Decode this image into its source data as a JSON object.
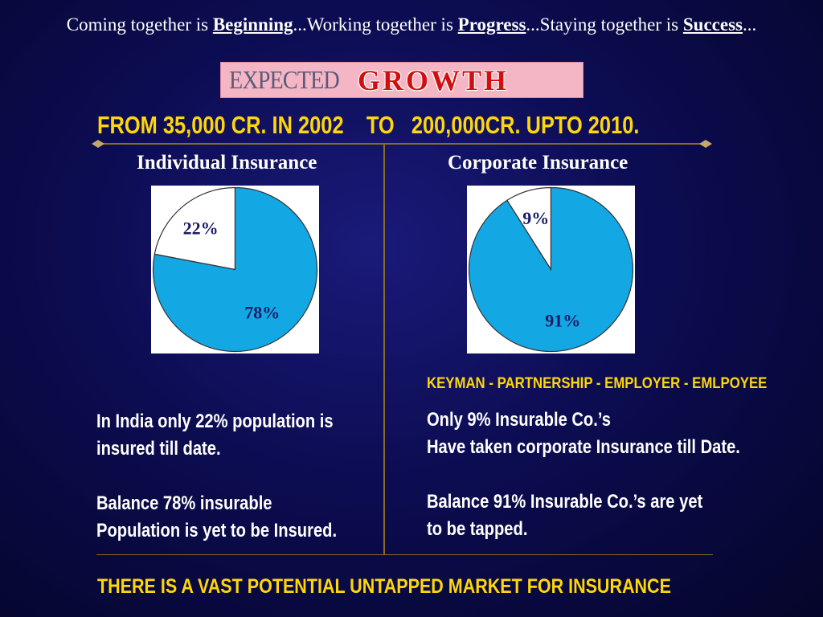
{
  "tagline": {
    "part1": "Coming together is ",
    "word1": "Beginning",
    "part2": "...Working together is ",
    "word2": "Progress",
    "part3": "...Staying together is ",
    "word3": "Success",
    "part4": "..."
  },
  "banner": {
    "expected": "EXPECTED",
    "growth": "GROWTH"
  },
  "growth_line": "FROM 35,000 CR. IN 2002    TO   200,000CR. UPTO 2010.",
  "colors": {
    "pie_blue": "#13a7e4",
    "pie_white": "#ffffff",
    "headline_yellow": "#ffd60a",
    "divider": "#8a6a25"
  },
  "chart_data": [
    {
      "type": "pie",
      "title": "Individual Insurance",
      "slices": [
        {
          "label": "22%",
          "value": 22,
          "color": "#ffffff"
        },
        {
          "label": "78%",
          "value": 78,
          "color": "#13a7e4"
        }
      ]
    },
    {
      "type": "pie",
      "title": "Corporate Insurance",
      "slices": [
        {
          "label": "9%",
          "value": 9,
          "color": "#ffffff"
        },
        {
          "label": "91%",
          "value": 91,
          "color": "#13a7e4"
        }
      ]
    }
  ],
  "keyman_line": "KEYMAN - PARTNERSHIP - EMPLOYER - EMLPOYEE",
  "individual_text": {
    "line1": "In India only 22% population is",
    "line2": "insured till date.",
    "line3": "Balance 78% insurable",
    "line4": "Population is yet to be Insured."
  },
  "corporate_text": {
    "line1": "Only 9% Insurable Co.’s",
    "line2": "Have taken corporate Insurance till Date.",
    "line3": "Balance 91% Insurable Co.’s are yet",
    "line4": "to be tapped."
  },
  "bottom_message": "THERE IS A VAST POTENTIAL UNTAPPED MARKET FOR INSURANCE"
}
